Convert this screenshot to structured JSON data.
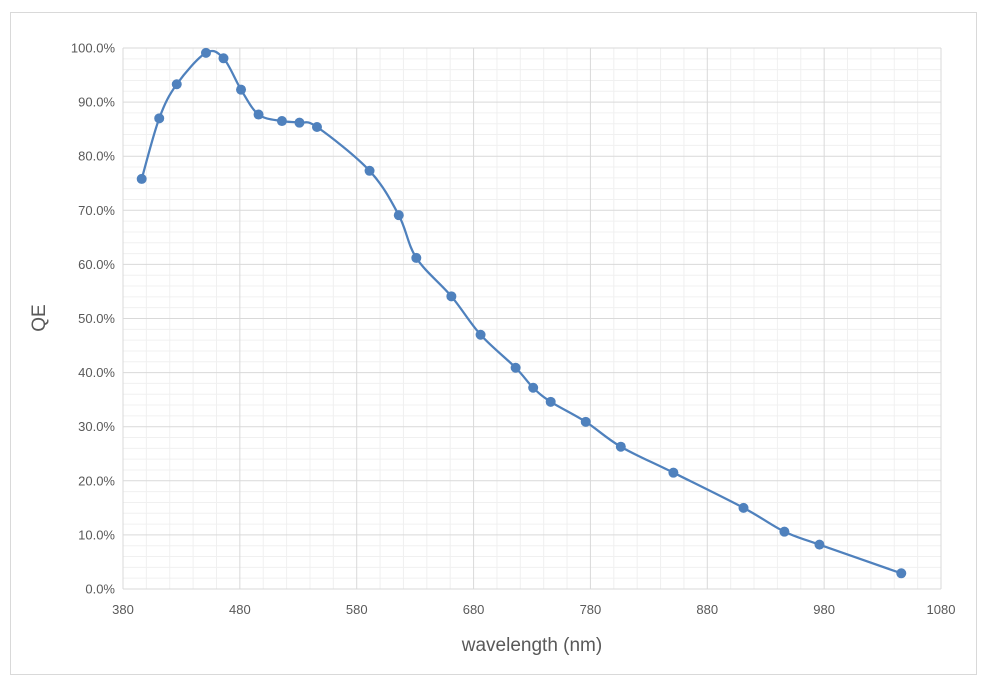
{
  "chart_data": {
    "type": "line",
    "xlabel": "wavelength (nm)",
    "ylabel": "QE",
    "xlim": [
      380,
      1080
    ],
    "ylim": [
      0,
      1.0
    ],
    "x_ticks": [
      "380",
      "480",
      "580",
      "680",
      "780",
      "880",
      "980",
      "1080"
    ],
    "y_ticks": [
      "0.0%",
      "10.0%",
      "20.0%",
      "30.0%",
      "40.0%",
      "50.0%",
      "60.0%",
      "70.0%",
      "80.0%",
      "90.0%",
      "100.0%"
    ],
    "grid": true,
    "series": [
      {
        "color": "#4f81bd",
        "markers": true,
        "smooth": true,
        "x": [
          396,
          411,
          426,
          451,
          466,
          481,
          496,
          516,
          531,
          546,
          591,
          616,
          631,
          661,
          686,
          716,
          731,
          746,
          776,
          806,
          851,
          911,
          946,
          976,
          1046
        ],
        "y": [
          0.758,
          0.87,
          0.933,
          0.991,
          0.981,
          0.923,
          0.877,
          0.865,
          0.862,
          0.854,
          0.773,
          0.691,
          0.612,
          0.541,
          0.47,
          0.409,
          0.372,
          0.346,
          0.309,
          0.263,
          0.215,
          0.15,
          0.106,
          0.082,
          0.029
        ]
      }
    ]
  },
  "colors": {
    "line": "#4f81bd",
    "grid_major": "#d9d9d9",
    "grid_minor": "#f0f0f0",
    "text": "#595959"
  }
}
